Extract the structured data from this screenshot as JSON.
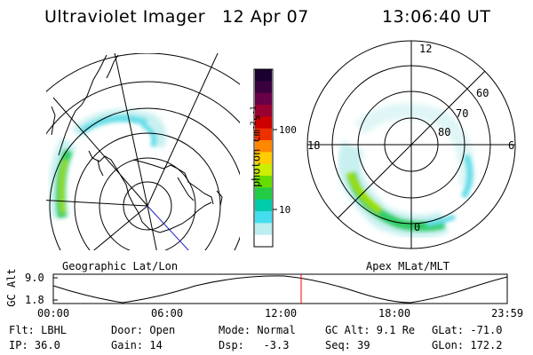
{
  "header": {
    "instrument": "Ultraviolet Imager",
    "date": "12 Apr 07",
    "time": "13:06:40 UT"
  },
  "colorbar": {
    "unit_label": "photon cm",
    "unit_exp1": "-2",
    "unit_s": "s",
    "unit_exp2": "-1",
    "ticks": [
      "100",
      "10"
    ],
    "colors": [
      "#1a0030",
      "#3a0040",
      "#6a0048",
      "#9a0030",
      "#cc0000",
      "#ee3000",
      "#ff8800",
      "#ffcc00",
      "#ccee00",
      "#66dd00",
      "#22cc44",
      "#00ccaa",
      "#44ddee",
      "#bbeeee",
      "#ffffff"
    ]
  },
  "left_panel": {
    "label": "Geographic Lat/Lon"
  },
  "right_panel": {
    "label": "Apex MLat/MLT",
    "mlt_labels": {
      "top": "12",
      "left": "18",
      "right": "6",
      "bottom": "0"
    },
    "lat_labels": [
      "60",
      "70",
      "80"
    ]
  },
  "timeline": {
    "ylabel": "GC Alt",
    "yticks": [
      "9.0",
      "1.8"
    ],
    "xticks": [
      "00:00",
      "06:00",
      "12:00",
      "18:00",
      "23:59"
    ],
    "marker_color": "#ff0000"
  },
  "status": {
    "flt": "Flt: LBHL",
    "ip": "IP: 36.0",
    "door": "Door: Open",
    "gain": "Gain: 14",
    "mode": "Mode: Normal",
    "dsp": "Dsp:   -3.3",
    "gcalt": "GC Alt: 9.1 Re",
    "seq": "Seq: 39",
    "glat": "GLat: -71.0",
    "glon": "GLon: 172.2"
  }
}
